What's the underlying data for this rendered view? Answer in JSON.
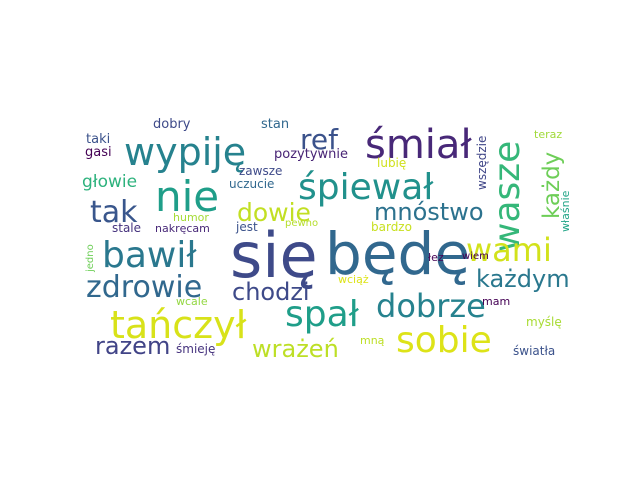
{
  "words": [
    {
      "text": "się",
      "color": "#3e4a89"
    },
    {
      "text": "będę",
      "color": "#31688e"
    },
    {
      "text": "śmiał",
      "color": "#482878"
    },
    {
      "text": "wypiję",
      "color": "#26828e"
    },
    {
      "text": "nie",
      "color": "#1f9e89"
    },
    {
      "text": "śpiewał",
      "color": "#21918c"
    },
    {
      "text": "wasze",
      "color": "#35b779"
    },
    {
      "text": "ref",
      "color": "#3b528b"
    },
    {
      "text": "bawił",
      "color": "#2a788e"
    },
    {
      "text": "wami",
      "color": "#d2e21b"
    },
    {
      "text": "zdrowie",
      "color": "#31688e"
    },
    {
      "text": "tak",
      "color": "#39568c"
    },
    {
      "text": "dowie",
      "color": "#c2df23"
    },
    {
      "text": "mnóstwo",
      "color": "#2c728e"
    },
    {
      "text": "każdy",
      "color": "#6ece58"
    },
    {
      "text": "każdym",
      "color": "#2a788e"
    },
    {
      "text": "chodzi",
      "color": "#3e4a89"
    },
    {
      "text": "spał",
      "color": "#1f9e89"
    },
    {
      "text": "dobrze",
      "color": "#26828e"
    },
    {
      "text": "tańczył",
      "color": "#d8e219"
    },
    {
      "text": "sobie",
      "color": "#dde318"
    },
    {
      "text": "razem",
      "color": "#414487"
    },
    {
      "text": "wrażeń",
      "color": "#bddf26"
    },
    {
      "text": "głowie",
      "color": "#2db27d"
    },
    {
      "text": "dobry",
      "color": "#3e4a89"
    },
    {
      "text": "stan",
      "color": "#31688e"
    },
    {
      "text": "taki",
      "color": "#3b528b"
    },
    {
      "text": "gasi",
      "color": "#440154"
    },
    {
      "text": "pozytywnie",
      "color": "#482475"
    },
    {
      "text": "zawsze",
      "color": "#3e4a89"
    },
    {
      "text": "uczucie",
      "color": "#31688e"
    },
    {
      "text": "humor",
      "color": "#a5db36"
    },
    {
      "text": "stale",
      "color": "#46337e"
    },
    {
      "text": "nakręcam",
      "color": "#482878"
    },
    {
      "text": "jest",
      "color": "#3b528b"
    },
    {
      "text": "pewno",
      "color": "#b5de2b"
    },
    {
      "text": "bardzo",
      "color": "#c8e020"
    },
    {
      "text": "lubię",
      "color": "#d0e11c"
    },
    {
      "text": "wszędzie",
      "color": "#404688"
    },
    {
      "text": "teraz",
      "color": "#a0da39"
    },
    {
      "text": "właśnie",
      "color": "#20a486"
    },
    {
      "text": "jedno",
      "color": "#6ece58"
    },
    {
      "text": "wcale",
      "color": "#93d741"
    },
    {
      "text": "wciąż",
      "color": "#dde318"
    },
    {
      "text": "łez",
      "color": "#440154"
    },
    {
      "text": "wiem",
      "color": "#440154"
    },
    {
      "text": "mam",
      "color": "#440154"
    },
    {
      "text": "myślę",
      "color": "#a8db34"
    },
    {
      "text": "śmieję",
      "color": "#46337e"
    },
    {
      "text": "mną",
      "color": "#bddf26"
    },
    {
      "text": "światła",
      "color": "#3b528b"
    }
  ]
}
